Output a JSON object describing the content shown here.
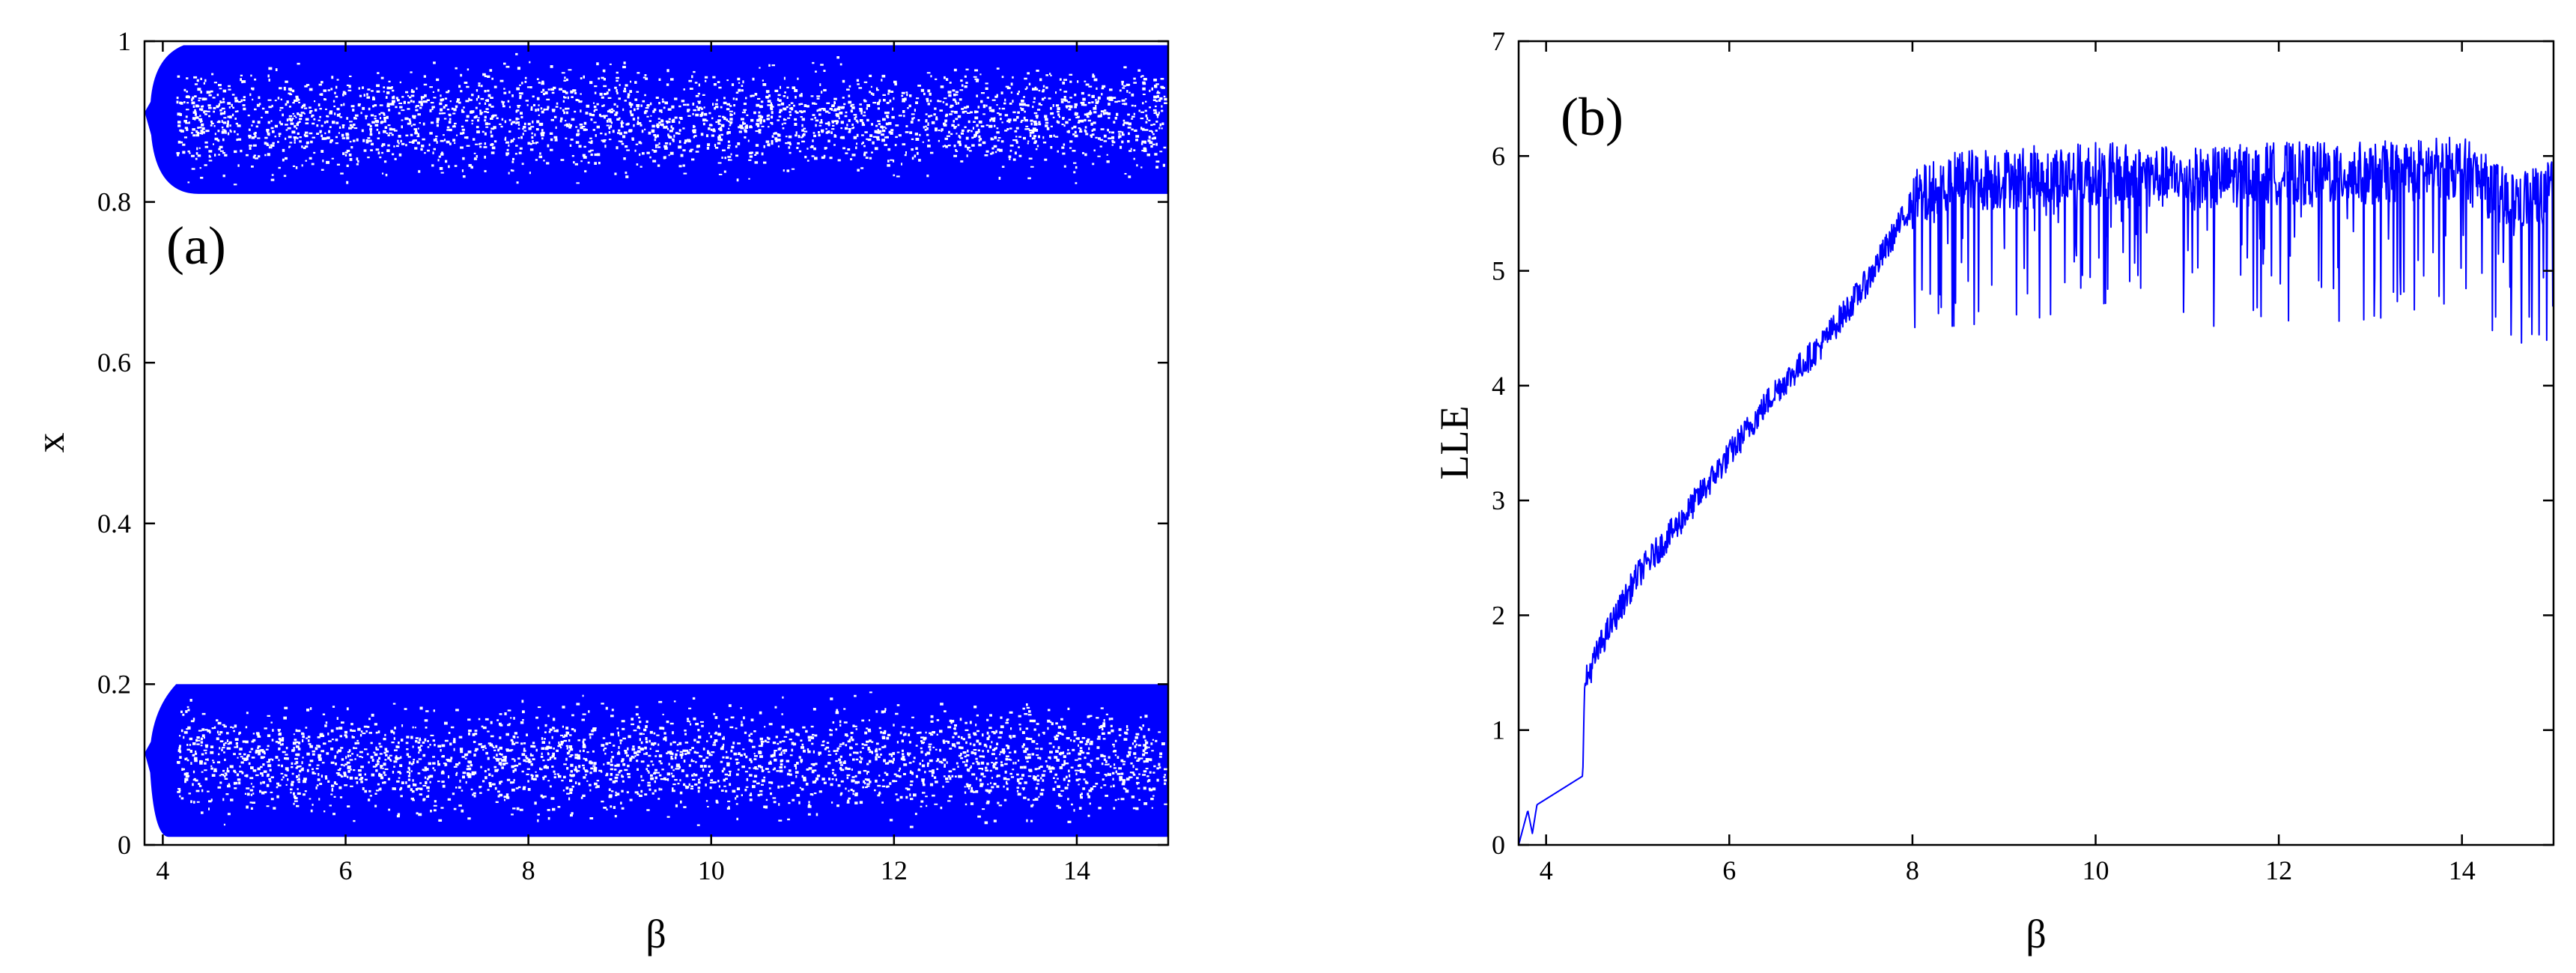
{
  "chart_data": [
    {
      "type": "scatter",
      "panel_label": "(a)",
      "xlabel": "β",
      "ylabel": "x",
      "xlim": [
        3.8,
        15
      ],
      "ylim": [
        0,
        1
      ],
      "x_ticks": [
        "4",
        "6",
        "8",
        "10",
        "12",
        "14"
      ],
      "y_ticks": [
        "0",
        "0.2",
        "0.4",
        "0.6",
        "0.8",
        "1"
      ],
      "color": "#0000ff",
      "bands": [
        {
          "name": "",
          "x_start": 3.9,
          "x_end": 15,
          "y_min": 0.01,
          "y_max": 0.2
        },
        {
          "name": "",
          "x_start": 3.9,
          "x_end": 15,
          "y_min": 0.81,
          "y_max": 0.995
        }
      ]
    },
    {
      "type": "line",
      "panel_label": "(b)",
      "xlabel": "β",
      "ylabel": "LLE",
      "xlim": [
        3.7,
        15
      ],
      "ylim": [
        0,
        7
      ],
      "x_ticks": [
        "4",
        "6",
        "8",
        "10",
        "12",
        "14"
      ],
      "y_ticks": [
        "0",
        "1",
        "2",
        "3",
        "4",
        "5",
        "6",
        "7"
      ],
      "color": "#0000ff",
      "series": [
        {
          "name": "",
          "x": [
            3.7,
            3.8,
            3.85,
            3.9,
            4.0,
            4.2,
            4.4,
            4.42,
            4.6,
            5.0,
            5.5,
            6.0,
            6.5,
            7.0,
            7.5,
            8.0,
            8.5,
            9.0,
            10.0,
            11.0,
            12.0,
            13.0,
            14.0,
            14.5,
            15.0
          ],
          "y": [
            0.0,
            0.3,
            0.1,
            0.35,
            0.4,
            0.5,
            0.6,
            1.4,
            1.75,
            2.35,
            2.85,
            3.4,
            3.95,
            4.35,
            4.9,
            5.6,
            5.8,
            5.8,
            5.85,
            5.8,
            5.85,
            5.85,
            5.9,
            5.6,
            5.7
          ]
        }
      ],
      "noise_start_x": 8.0
    }
  ]
}
